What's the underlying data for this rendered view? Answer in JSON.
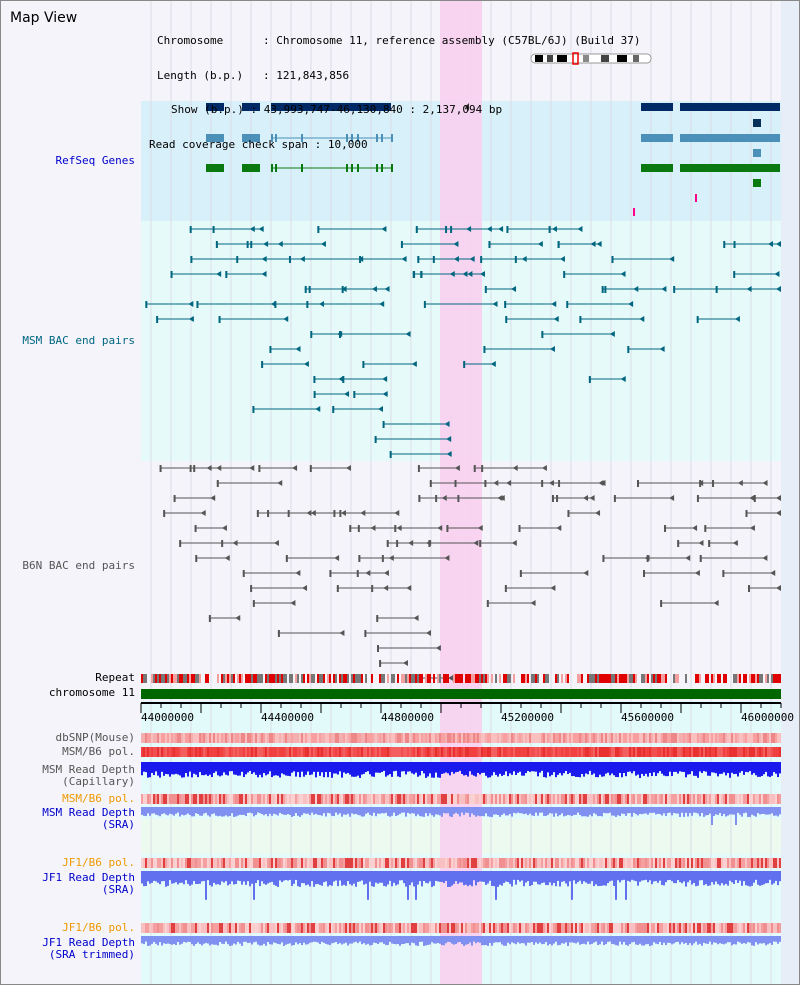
{
  "window_title": "Map View",
  "info": {
    "chromosome_label": "Chromosome",
    "chromosome_value": "Chromosome 11, reference assembly (C57BL/6J) (Build 37)",
    "length_label": "Length (b.p.)",
    "length_value": "121,843,856",
    "show_label": "Show (b.p.)",
    "show_value": "43,993,747-46,130,840 : 2,137,094 bp",
    "coverage_label": "Read coverage check span",
    "coverage_value": "10,000"
  },
  "tracks": {
    "refseq_genes": "RefSeq Genes",
    "msm_bac": "MSM BAC end pairs",
    "b6n_bac": "B6N BAC end pairs",
    "repeat": "Repeat",
    "chromosome": "chromosome 11",
    "dbsnp": "dbSNP(Mouse)",
    "msm_b6_pol_1": "MSM/B6 pol.",
    "msm_read_depth_cap_1": "MSM Read Depth",
    "msm_read_depth_cap_2": "(Capillary)",
    "msm_b6_pol_2": "MSM/B6 pol.",
    "msm_read_depth_sra_1": "MSM Read Depth",
    "msm_read_depth_sra_2": "(SRA)",
    "jf1_b6_pol_1": "JF1/B6 pol.",
    "jf1_read_depth_sra_1": "JF1 Read Depth",
    "jf1_read_depth_sra_2": "(SRA)",
    "jf1_b6_pol_2": "JF1/B6 pol.",
    "jf1_read_depth_trim_1": "JF1 Read Depth",
    "jf1_read_depth_trim_2": "(SRA trimmed)"
  },
  "axis": {
    "ticks": [
      "44000000",
      "44400000",
      "44800000",
      "45200000",
      "45600000",
      "46000000"
    ]
  },
  "colors": {
    "refseq_blue": "#0000cc",
    "msm_teal": "#006680",
    "gray": "#555555",
    "orange": "#ee9900",
    "highlight": "#f8d0f0",
    "chromosome_green": "#006600"
  }
}
